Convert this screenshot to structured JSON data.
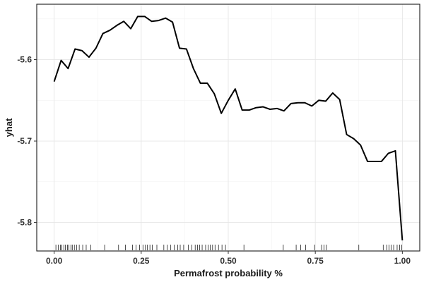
{
  "chart_data": {
    "type": "line",
    "xlabel": "Permafrost probability %",
    "ylabel": "yhat",
    "xlim": [
      -0.05,
      1.05
    ],
    "ylim": [
      -5.835,
      -5.532
    ],
    "x_ticks": [
      0.0,
      0.25,
      0.5,
      0.75,
      1.0
    ],
    "x_tick_labels": [
      "0.00",
      "0.25",
      "0.50",
      "0.75",
      "1.00"
    ],
    "y_ticks": [
      -5.8,
      -5.7,
      -5.6
    ],
    "y_tick_labels": [
      "-5.8",
      "-5.7",
      "-5.6"
    ],
    "grid": true,
    "legend": "none",
    "line_color": "#000000",
    "series": [
      {
        "x": [
          0.0,
          0.02,
          0.04,
          0.06,
          0.08,
          0.1,
          0.12,
          0.14,
          0.16,
          0.18,
          0.2,
          0.22,
          0.24,
          0.26,
          0.28,
          0.3,
          0.32,
          0.34,
          0.36,
          0.38,
          0.4,
          0.42,
          0.44,
          0.46,
          0.48,
          0.5,
          0.52,
          0.54,
          0.56,
          0.58,
          0.6,
          0.62,
          0.64,
          0.66,
          0.68,
          0.7,
          0.72,
          0.74,
          0.76,
          0.78,
          0.8,
          0.82,
          0.84,
          0.86,
          0.88,
          0.9,
          0.92,
          0.94,
          0.96,
          0.98,
          1.0
        ],
        "y": [
          -5.627,
          -5.601,
          -5.611,
          -5.587,
          -5.589,
          -5.597,
          -5.586,
          -5.568,
          -5.564,
          -5.558,
          -5.553,
          -5.562,
          -5.547,
          -5.547,
          -5.553,
          -5.552,
          -5.549,
          -5.554,
          -5.586,
          -5.587,
          -5.611,
          -5.629,
          -5.629,
          -5.642,
          -5.666,
          -5.65,
          -5.636,
          -5.662,
          -5.662,
          -5.659,
          -5.658,
          -5.661,
          -5.66,
          -5.663,
          -5.654,
          -5.653,
          -5.653,
          -5.657,
          -5.65,
          -5.651,
          -5.641,
          -5.649,
          -5.692,
          -5.697,
          -5.705,
          -5.725,
          -5.725,
          -5.725,
          -5.715,
          -5.712,
          -5.822
        ]
      }
    ],
    "rug_x": [
      0.005,
      0.012,
      0.018,
      0.022,
      0.028,
      0.032,
      0.038,
      0.042,
      0.048,
      0.052,
      0.058,
      0.065,
      0.072,
      0.082,
      0.092,
      0.105,
      0.145,
      0.185,
      0.205,
      0.225,
      0.235,
      0.245,
      0.255,
      0.262,
      0.268,
      0.275,
      0.282,
      0.295,
      0.315,
      0.325,
      0.335,
      0.345,
      0.355,
      0.362,
      0.372,
      0.385,
      0.395,
      0.405,
      0.412,
      0.418,
      0.425,
      0.435,
      0.442,
      0.448,
      0.455,
      0.462,
      0.472,
      0.482,
      0.492,
      0.545,
      0.658,
      0.695,
      0.708,
      0.722,
      0.748,
      0.768,
      0.775,
      0.782,
      0.875,
      0.945,
      0.955,
      0.962,
      0.968,
      0.975,
      0.985,
      0.992,
      0.998
    ]
  }
}
